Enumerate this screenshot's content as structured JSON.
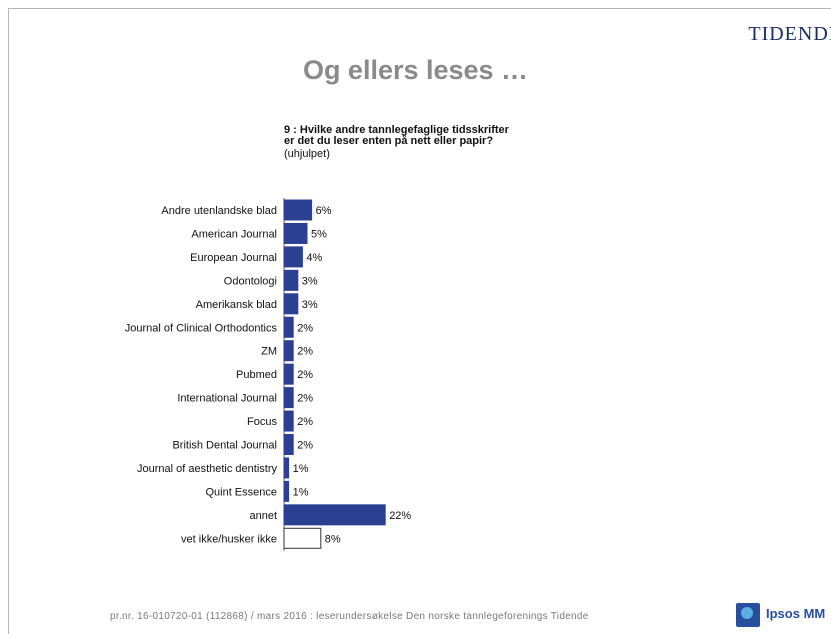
{
  "header": {
    "brand": "TIDENDE"
  },
  "page_title": "Og ellers leses …",
  "question": {
    "line1": "9 : Hvilke andre tannlegefaglige tidsskrifter",
    "line2": "er det du leser enten på nett eller papir?",
    "line3": "(uhjulpet)"
  },
  "colors": {
    "bar": "#2b3f93",
    "bar_highlight": "#ffffff",
    "brand": "#1a2e66"
  },
  "chart_data": {
    "type": "bar",
    "orientation": "horizontal",
    "categories": [
      "Andre utenlandske blad",
      "American Journal",
      "European Journal",
      "Odontologi",
      "Amerikansk blad",
      "Journal of Clinical Orthodontics",
      "ZM",
      "Pubmed",
      "International Journal",
      "Focus",
      "British Dental Journal",
      "Journal of aesthetic dentistry",
      "Quint Essence",
      "annet",
      "vet ikke/husker ikke"
    ],
    "values": [
      6,
      5,
      4,
      3,
      3,
      2,
      2,
      2,
      2,
      2,
      2,
      1,
      1,
      22,
      8
    ],
    "value_labels": [
      "6%",
      "5%",
      "4%",
      "3%",
      "3%",
      "2%",
      "2%",
      "2%",
      "2%",
      "2%",
      "2%",
      "1%",
      "1%",
      "22%",
      "8%"
    ],
    "unit": "%",
    "last_bar_style": "outline"
  },
  "footer": {
    "text": "pr.nr. 16-010720-01 (112868) / mars 2016 : leserundersøkelse Den norske tannlegeforenings Tidende"
  },
  "logo": {
    "text": "Ipsos MM"
  }
}
